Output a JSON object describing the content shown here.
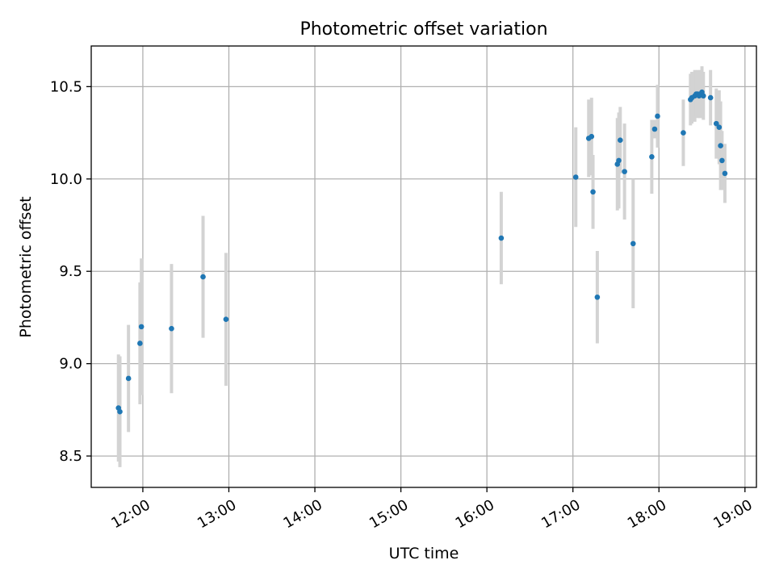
{
  "chart_data": {
    "type": "scatter",
    "title": "Photometric offset variation",
    "xlabel": "UTC time",
    "ylabel": "Photometric offset",
    "x_unit": "time of day (HH:MM)",
    "xlim": [
      "11:24",
      "19:08"
    ],
    "ylim": [
      8.33,
      10.72
    ],
    "x_ticks": [
      "12:00",
      "13:00",
      "14:00",
      "15:00",
      "16:00",
      "17:00",
      "18:00",
      "19:00"
    ],
    "y_ticks": [
      8.5,
      9.0,
      9.5,
      10.0,
      10.5
    ],
    "y_tick_labels": [
      "8.5",
      "9.0",
      "9.5",
      "10.0",
      "10.5"
    ],
    "grid": true,
    "legend": "none",
    "point_color": "#1f77b4",
    "errorbar_color": "#d3d3d3",
    "points": [
      {
        "t": "11:43",
        "y": 8.76,
        "err": 0.29
      },
      {
        "t": "11:44",
        "y": 8.74,
        "err": 0.3
      },
      {
        "t": "11:50",
        "y": 8.92,
        "err": 0.29
      },
      {
        "t": "11:58",
        "y": 9.11,
        "err": 0.33
      },
      {
        "t": "11:59",
        "y": 9.2,
        "err": 0.37
      },
      {
        "t": "12:20",
        "y": 9.19,
        "err": 0.35
      },
      {
        "t": "12:42",
        "y": 9.47,
        "err": 0.33
      },
      {
        "t": "12:58",
        "y": 9.24,
        "err": 0.36
      },
      {
        "t": "16:10",
        "y": 9.68,
        "err": 0.25
      },
      {
        "t": "17:02",
        "y": 10.01,
        "err": 0.27
      },
      {
        "t": "17:11",
        "y": 10.22,
        "err": 0.21
      },
      {
        "t": "17:13",
        "y": 10.23,
        "err": 0.21
      },
      {
        "t": "17:14",
        "y": 9.93,
        "err": 0.2
      },
      {
        "t": "17:17",
        "y": 9.36,
        "err": 0.25
      },
      {
        "t": "17:31",
        "y": 10.08,
        "err": 0.25
      },
      {
        "t": "17:32",
        "y": 10.1,
        "err": 0.26
      },
      {
        "t": "17:33",
        "y": 10.21,
        "err": 0.18
      },
      {
        "t": "17:36",
        "y": 10.04,
        "err": 0.26
      },
      {
        "t": "17:42",
        "y": 9.65,
        "err": 0.35
      },
      {
        "t": "17:55",
        "y": 10.12,
        "err": 0.2
      },
      {
        "t": "17:57",
        "y": 10.27,
        "err": 0.05
      },
      {
        "t": "17:59",
        "y": 10.34,
        "err": 0.17
      },
      {
        "t": "18:17",
        "y": 10.25,
        "err": 0.18
      },
      {
        "t": "18:22",
        "y": 10.43,
        "err": 0.14
      },
      {
        "t": "18:23",
        "y": 10.44,
        "err": 0.14
      },
      {
        "t": "18:25",
        "y": 10.45,
        "err": 0.14
      },
      {
        "t": "18:26",
        "y": 10.46,
        "err": 0.12
      },
      {
        "t": "18:27",
        "y": 10.46,
        "err": 0.13
      },
      {
        "t": "18:28",
        "y": 10.45,
        "err": 0.12
      },
      {
        "t": "18:29",
        "y": 10.46,
        "err": 0.13
      },
      {
        "t": "18:30",
        "y": 10.47,
        "err": 0.14
      },
      {
        "t": "18:31",
        "y": 10.45,
        "err": 0.13
      },
      {
        "t": "18:36",
        "y": 10.44,
        "err": 0.15
      },
      {
        "t": "18:40",
        "y": 10.3,
        "err": 0.19
      },
      {
        "t": "18:42",
        "y": 10.28,
        "err": 0.2
      },
      {
        "t": "18:43",
        "y": 10.18,
        "err": 0.24
      },
      {
        "t": "18:44",
        "y": 10.1,
        "err": 0.16
      },
      {
        "t": "18:46",
        "y": 10.03,
        "err": 0.16
      }
    ]
  }
}
